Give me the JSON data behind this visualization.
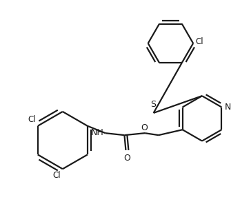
{
  "background_color": "#ffffff",
  "line_color": "#1a1a1a",
  "line_width": 1.6,
  "figure_width": 3.64,
  "figure_height": 3.12,
  "dpi": 100,
  "xlim": [
    0,
    364
  ],
  "ylim": [
    0,
    312
  ]
}
